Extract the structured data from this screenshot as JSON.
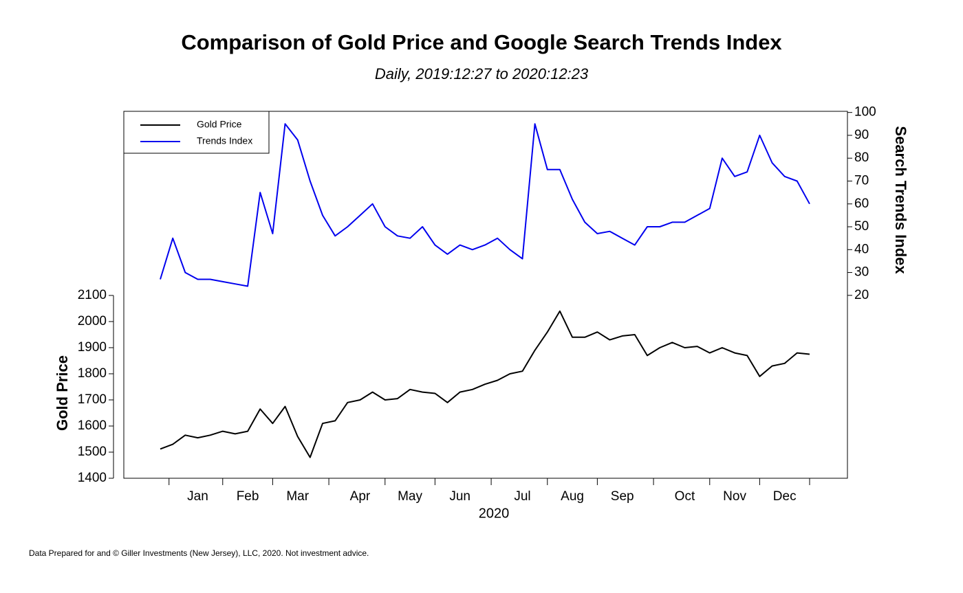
{
  "chart_data": {
    "type": "line",
    "title": "Comparison of Gold Price and Google Search Trends Index",
    "subtitle": "Daily, 2019:12:27 to 2020:12:23",
    "x_label": "2020",
    "y_label": "Gold Price",
    "y2_label": "Search Trends Index",
    "footnote": "Data Prepared for and © Giller Investments (New Jersey), LLC, 2020. Not investment advice.",
    "categories": [
      null,
      null,
      null,
      "Jan",
      null,
      null,
      null,
      "Feb",
      null,
      null,
      null,
      "Mar",
      null,
      null,
      null,
      null,
      "Apr",
      null,
      null,
      null,
      "May",
      null,
      null,
      null,
      "Jun",
      null,
      null,
      null,
      null,
      "Jul",
      null,
      null,
      null,
      "Aug",
      null,
      null,
      null,
      "Sep",
      null,
      null,
      null,
      null,
      "Oct",
      null,
      null,
      null,
      "Nov",
      null,
      null,
      null,
      "Dec",
      null,
      null
    ],
    "series": [
      {
        "name": "Gold Price",
        "color": "#000000",
        "axis": "y",
        "values": [
          1512,
          1530,
          1565,
          1555,
          1565,
          1580,
          1570,
          1580,
          1665,
          1610,
          1675,
          1560,
          1480,
          1610,
          1620,
          1690,
          1700,
          1730,
          1700,
          1705,
          1740,
          1730,
          1725,
          1690,
          1730,
          1740,
          1760,
          1775,
          1800,
          1810,
          1890,
          1960,
          2040,
          1940,
          1940,
          1960,
          1930,
          1945,
          1950,
          1870,
          1900,
          1920,
          1900,
          1905,
          1880,
          1900,
          1880,
          1870,
          1790,
          1830,
          1840,
          1880,
          1875
        ]
      },
      {
        "name": "Trends Index",
        "color": "#0000ee",
        "axis": "y2",
        "values": [
          27,
          45,
          30,
          27,
          27,
          26,
          25,
          24,
          65,
          47,
          95,
          88,
          70,
          55,
          46,
          50,
          55,
          60,
          50,
          46,
          45,
          50,
          42,
          38,
          42,
          40,
          42,
          45,
          40,
          36,
          95,
          75,
          75,
          62,
          52,
          47,
          48,
          45,
          42,
          50,
          50,
          52,
          52,
          55,
          58,
          80,
          72,
          74,
          90,
          78,
          72,
          70,
          60
        ]
      }
    ],
    "ylim": [
      1400,
      2805
    ],
    "yticks": [
      1400,
      1500,
      1600,
      1700,
      1800,
      1900,
      2000,
      2100
    ],
    "y2lim": [
      -60,
      100.5
    ],
    "y2ticks": [
      20,
      30,
      40,
      50,
      60,
      70,
      80,
      90,
      100
    ],
    "legend": "top-left"
  }
}
